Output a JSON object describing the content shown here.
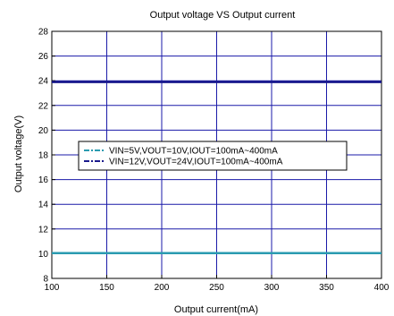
{
  "chart_data": {
    "type": "line",
    "title": "Output voltage VS Output current",
    "xlabel": "Output current(mA)",
    "ylabel": "Output voltage(V)",
    "xlim": [
      100,
      400
    ],
    "ylim": [
      8,
      28
    ],
    "xticks": [
      100,
      150,
      200,
      250,
      300,
      350,
      400
    ],
    "yticks": [
      8,
      10,
      12,
      14,
      16,
      18,
      20,
      22,
      24,
      26,
      28
    ],
    "grid": true,
    "legend_position": "center-left",
    "series": [
      {
        "name": "VIN=5V,VOUT=10V,IOUT=100mA~400mA",
        "color": "#2a9bb0",
        "x": [
          100,
          400
        ],
        "y": [
          10.05,
          10.05
        ]
      },
      {
        "name": "VIN=12V,VOUT=24V,IOUT=100mA~400mA",
        "color": "#1a1a8c",
        "x": [
          100,
          400
        ],
        "y": [
          23.9,
          23.9
        ]
      }
    ],
    "grid_color": "#1a1aa8"
  }
}
